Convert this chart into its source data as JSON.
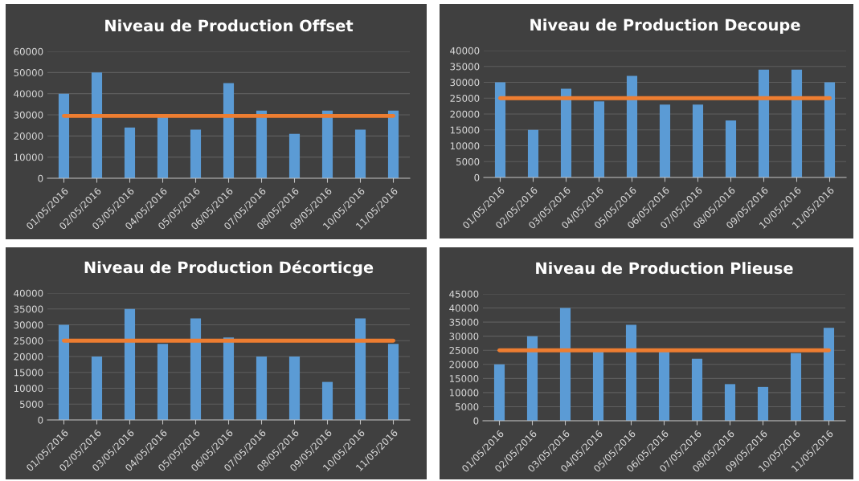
{
  "chart_data": [
    {
      "type": "bar",
      "title": "Niveau de Production Offset",
      "categories": [
        "01/05/2016",
        "02/05/2016",
        "03/05/2016",
        "04/05/2016",
        "05/05/2016",
        "06/05/2016",
        "07/05/2016",
        "08/05/2016",
        "09/05/2016",
        "10/05/2016",
        "11/05/2016"
      ],
      "series": [
        {
          "color": "#5b9bd5",
          "values": [
            40000,
            50000,
            24000,
            29000,
            23000,
            45000,
            32000,
            21000,
            32000,
            23000,
            32000
          ]
        },
        {
          "type": "line",
          "color": "#ed7d31",
          "values": [
            29500,
            29500,
            29500,
            29500,
            29500,
            29500,
            29500,
            29500,
            29500,
            29500,
            29500
          ]
        }
      ],
      "ylim": [
        0,
        60000
      ],
      "yticks": [
        0,
        10000,
        20000,
        30000,
        40000,
        50000,
        60000
      ],
      "grid": "y"
    },
    {
      "type": "bar",
      "title": "Niveau de Production Decoupe",
      "categories": [
        "01/05/2016",
        "02/05/2016",
        "03/05/2016",
        "04/05/2016",
        "05/05/2016",
        "06/05/2016",
        "07/05/2016",
        "08/05/2016",
        "09/05/2016",
        "10/05/2016",
        "11/05/2016"
      ],
      "series": [
        {
          "color": "#5b9bd5",
          "values": [
            30000,
            15000,
            28000,
            24000,
            32000,
            23000,
            23000,
            18000,
            34000,
            34000,
            30000
          ]
        },
        {
          "type": "line",
          "color": "#ed7d31",
          "values": [
            25000,
            25000,
            25000,
            25000,
            25000,
            25000,
            25000,
            25000,
            25000,
            25000,
            25000
          ]
        }
      ],
      "ylim": [
        0,
        40000
      ],
      "yticks": [
        0,
        5000,
        10000,
        15000,
        20000,
        25000,
        30000,
        35000,
        40000
      ],
      "grid": "y"
    },
    {
      "type": "bar",
      "title": "Niveau de Production Décorticge",
      "categories": [
        "01/05/2016",
        "02/05/2016",
        "03/05/2016",
        "04/05/2016",
        "05/05/2016",
        "06/05/2016",
        "07/05/2016",
        "08/05/2016",
        "09/05/2016",
        "10/05/2016",
        "11/05/2016"
      ],
      "series": [
        {
          "color": "#5b9bd5",
          "values": [
            30000,
            20000,
            35000,
            24000,
            32000,
            26000,
            20000,
            20000,
            12000,
            32000,
            24000
          ]
        },
        {
          "type": "line",
          "color": "#ed7d31",
          "values": [
            25000,
            25000,
            25000,
            25000,
            25000,
            25000,
            25000,
            25000,
            25000,
            25000,
            25000
          ]
        }
      ],
      "ylim": [
        0,
        40000
      ],
      "yticks": [
        0,
        5000,
        10000,
        15000,
        20000,
        25000,
        30000,
        35000,
        40000
      ],
      "grid": "y"
    },
    {
      "type": "bar",
      "title": "Niveau de Production Plieuse",
      "categories": [
        "01/05/2016",
        "02/05/2016",
        "03/05/2016",
        "04/05/2016",
        "05/05/2016",
        "06/05/2016",
        "07/05/2016",
        "08/05/2016",
        "09/05/2016",
        "10/05/2016",
        "11/05/2016"
      ],
      "series": [
        {
          "color": "#5b9bd5",
          "values": [
            20000,
            30000,
            40000,
            25000,
            34000,
            25000,
            22000,
            13000,
            12000,
            24000,
            33000
          ]
        },
        {
          "type": "line",
          "color": "#ed7d31",
          "values": [
            25000,
            25000,
            25000,
            25000,
            25000,
            25000,
            25000,
            25000,
            25000,
            25000,
            25000
          ]
        }
      ],
      "ylim": [
        0,
        45000
      ],
      "yticks": [
        0,
        5000,
        10000,
        15000,
        20000,
        25000,
        30000,
        35000,
        40000,
        45000
      ],
      "grid": "y"
    }
  ]
}
